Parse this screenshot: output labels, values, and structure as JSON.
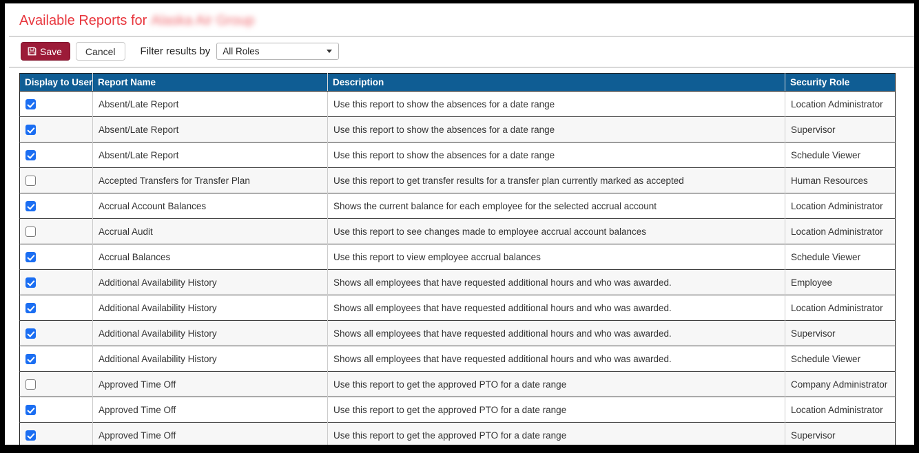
{
  "page": {
    "title_prefix": "Available Reports for",
    "title_company": "Alaska Air Group"
  },
  "toolbar": {
    "save_label": "Save",
    "cancel_label": "Cancel",
    "filter_label": "Filter results by",
    "filter_selected_value": "All Roles"
  },
  "table": {
    "columns": [
      "Display to User",
      "Report Name",
      "Description",
      "Security Role"
    ],
    "rows": [
      {
        "checked": true,
        "name": "Absent/Late Report",
        "description": "Use this report to show the absences for a date range",
        "role": "Location Administrator"
      },
      {
        "checked": true,
        "name": "Absent/Late Report",
        "description": "Use this report to show the absences for a date range",
        "role": "Supervisor"
      },
      {
        "checked": true,
        "name": "Absent/Late Report",
        "description": "Use this report to show the absences for a date range",
        "role": "Schedule Viewer"
      },
      {
        "checked": false,
        "name": "Accepted Transfers for Transfer Plan",
        "description": "Use this report to get transfer results for a transfer plan currently marked as accepted",
        "role": "Human Resources"
      },
      {
        "checked": true,
        "name": "Accrual Account Balances",
        "description": "Shows the current balance for each employee for the selected accrual account",
        "role": "Location Administrator"
      },
      {
        "checked": false,
        "name": "Accrual Audit",
        "description": "Use this report to see changes made to employee accrual account balances",
        "role": "Location Administrator"
      },
      {
        "checked": true,
        "name": "Accrual Balances",
        "description": "Use this report to view employee accrual balances",
        "role": "Schedule Viewer"
      },
      {
        "checked": true,
        "name": "Additional Availability History",
        "description": "Shows all employees that have requested additional hours and who was awarded.",
        "role": "Employee"
      },
      {
        "checked": true,
        "name": "Additional Availability History",
        "description": "Shows all employees that have requested additional hours and who was awarded.",
        "role": "Location Administrator"
      },
      {
        "checked": true,
        "name": "Additional Availability History",
        "description": "Shows all employees that have requested additional hours and who was awarded.",
        "role": "Supervisor"
      },
      {
        "checked": true,
        "name": "Additional Availability History",
        "description": "Shows all employees that have requested additional hours and who was awarded.",
        "role": "Schedule Viewer"
      },
      {
        "checked": false,
        "name": "Approved Time Off",
        "description": "Use this report to get the approved PTO for a date range",
        "role": "Company Administrator"
      },
      {
        "checked": true,
        "name": "Approved Time Off",
        "description": "Use this report to get the approved PTO for a date range",
        "role": "Location Administrator"
      },
      {
        "checked": true,
        "name": "Approved Time Off",
        "description": "Use this report to get the approved PTO for a date range",
        "role": "Supervisor"
      }
    ]
  },
  "colors": {
    "accent_red": "#e8363d",
    "save_btn": "#9c1b38",
    "header_blue": "#0f5d94",
    "checkbox_blue": "#1b6ef2"
  }
}
